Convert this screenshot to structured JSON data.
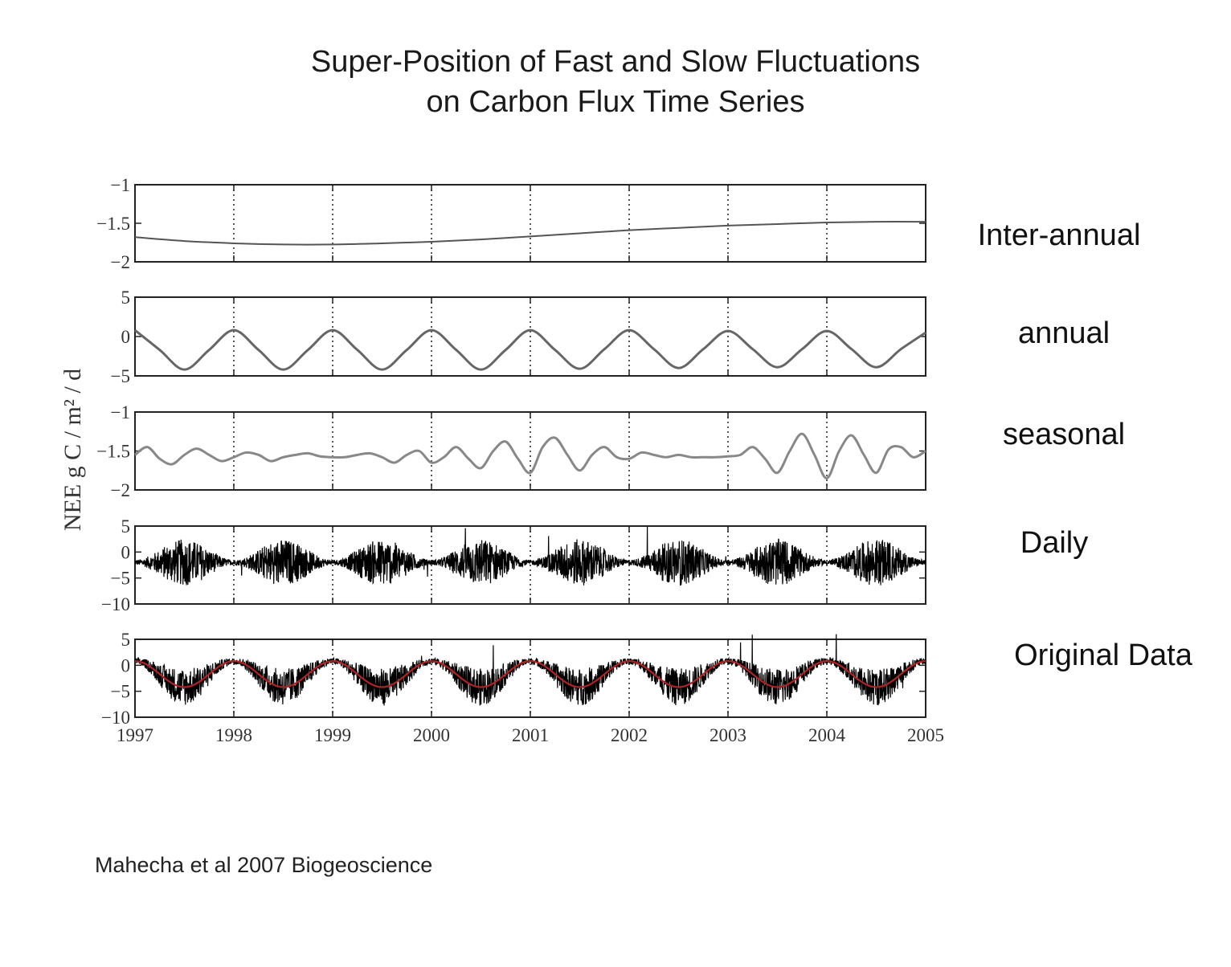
{
  "title": {
    "line1": "Super-Position of Fast and Slow Fluctuations",
    "line2": "on Carbon Flux Time Series"
  },
  "citation": "Mahecha et al 2007 Biogeoscience",
  "chart_data": {
    "type": "line",
    "ylabel": "NEE g C / m² / d",
    "x_ticks": [
      "1997",
      "1998",
      "1999",
      "2000",
      "2001",
      "2002",
      "2003",
      "2004",
      "2005"
    ],
    "xlim": [
      1997,
      2005
    ],
    "grid": "vertical dotted at each year",
    "panels": [
      {
        "label": "Inter-annual",
        "ylim": [
          -2,
          -1
        ],
        "y_ticks": [
          "-1",
          "-1.5",
          "-2"
        ],
        "series": [
          {
            "color": "#555555",
            "x": [
              1997,
              1997.5,
              1998,
              1998.5,
              1999,
              1999.5,
              2000,
              2000.5,
              2001,
              2001.5,
              2002,
              2002.5,
              2003,
              2003.5,
              2004,
              2004.5,
              2005
            ],
            "y": [
              -1.68,
              -1.73,
              -1.76,
              -1.775,
              -1.775,
              -1.76,
              -1.74,
              -1.71,
              -1.67,
              -1.63,
              -1.59,
              -1.56,
              -1.53,
              -1.51,
              -1.49,
              -1.48,
              -1.48
            ]
          }
        ]
      },
      {
        "label": "annual",
        "ylim": [
          -5,
          5
        ],
        "y_ticks": [
          "5",
          "0",
          "-5"
        ],
        "series": [
          {
            "color": "#666666",
            "x": [
              1997,
              1997.25,
              1997.5,
              1997.75,
              1998,
              1998.25,
              1998.5,
              1998.75,
              1999,
              1999.25,
              1999.5,
              1999.75,
              2000,
              2000.25,
              2000.5,
              2000.75,
              2001,
              2001.25,
              2001.5,
              2001.75,
              2002,
              2002.25,
              2002.5,
              2002.75,
              2003,
              2003.25,
              2003.5,
              2003.75,
              2004,
              2004.25,
              2004.5,
              2004.75,
              2005
            ],
            "y": [
              0.8,
              -1.7,
              -4.2,
              -1.7,
              0.8,
              -1.7,
              -4.2,
              -1.7,
              0.8,
              -1.7,
              -4.2,
              -1.7,
              0.8,
              -1.7,
              -4.2,
              -1.7,
              0.8,
              -1.7,
              -4.1,
              -1.6,
              0.8,
              -1.6,
              -4.0,
              -1.6,
              0.7,
              -1.6,
              -3.9,
              -1.6,
              0.7,
              -1.6,
              -3.9,
              -1.6,
              0.5
            ]
          }
        ]
      },
      {
        "label": "seasonal",
        "ylim": [
          -2,
          -1
        ],
        "y_ticks": [
          "-1",
          "-1.5",
          "-2"
        ],
        "series": [
          {
            "color": "#888888",
            "x": [
              1997,
              1997.125,
              1997.25,
              1997.375,
              1997.5,
              1997.625,
              1997.75,
              1997.875,
              1998,
              1998.125,
              1998.25,
              1998.375,
              1998.5,
              1998.625,
              1998.75,
              1998.875,
              1999,
              1999.125,
              1999.25,
              1999.375,
              1999.5,
              1999.625,
              1999.75,
              1999.875,
              2000,
              2000.125,
              2000.25,
              2000.375,
              2000.5,
              2000.625,
              2000.75,
              2000.875,
              2001,
              2001.125,
              2001.25,
              2001.375,
              2001.5,
              2001.625,
              2001.75,
              2001.875,
              2002,
              2002.125,
              2002.25,
              2002.375,
              2002.5,
              2002.625,
              2002.75,
              2002.875,
              2003,
              2003.125,
              2003.25,
              2003.375,
              2003.5,
              2003.625,
              2003.75,
              2003.875,
              2004,
              2004.125,
              2004.25,
              2004.375,
              2004.5,
              2004.625,
              2004.75,
              2004.875,
              2005
            ],
            "y": [
              -1.55,
              -1.45,
              -1.6,
              -1.67,
              -1.55,
              -1.47,
              -1.55,
              -1.63,
              -1.58,
              -1.52,
              -1.55,
              -1.63,
              -1.58,
              -1.55,
              -1.53,
              -1.57,
              -1.58,
              -1.58,
              -1.55,
              -1.53,
              -1.58,
              -1.65,
              -1.55,
              -1.5,
              -1.65,
              -1.58,
              -1.45,
              -1.6,
              -1.72,
              -1.5,
              -1.38,
              -1.6,
              -1.78,
              -1.45,
              -1.33,
              -1.55,
              -1.75,
              -1.55,
              -1.45,
              -1.58,
              -1.6,
              -1.52,
              -1.55,
              -1.58,
              -1.55,
              -1.58,
              -1.58,
              -1.58,
              -1.57,
              -1.55,
              -1.45,
              -1.6,
              -1.78,
              -1.5,
              -1.28,
              -1.55,
              -1.85,
              -1.5,
              -1.3,
              -1.55,
              -1.78,
              -1.48,
              -1.45,
              -1.58,
              -1.5
            ]
          }
        ]
      },
      {
        "label": "Daily",
        "ylim": [
          -10,
          5
        ],
        "y_ticks": [
          "5",
          "0",
          "-5",
          "-10"
        ],
        "series": [
          {
            "color": "#000000",
            "style": "noisy daily residuals centered near -2 g C / m² / d, spiking to about +5 and -7"
          }
        ]
      },
      {
        "label": "Original Data",
        "ylim": [
          -10,
          5
        ],
        "y_ticks": [
          "5",
          "0",
          "-5",
          "-10"
        ],
        "series": [
          {
            "color": "#000000",
            "style": "observed daily NEE"
          },
          {
            "color": "#b22222",
            "style": "sum of slow components following the annual cycle"
          }
        ]
      }
    ]
  }
}
